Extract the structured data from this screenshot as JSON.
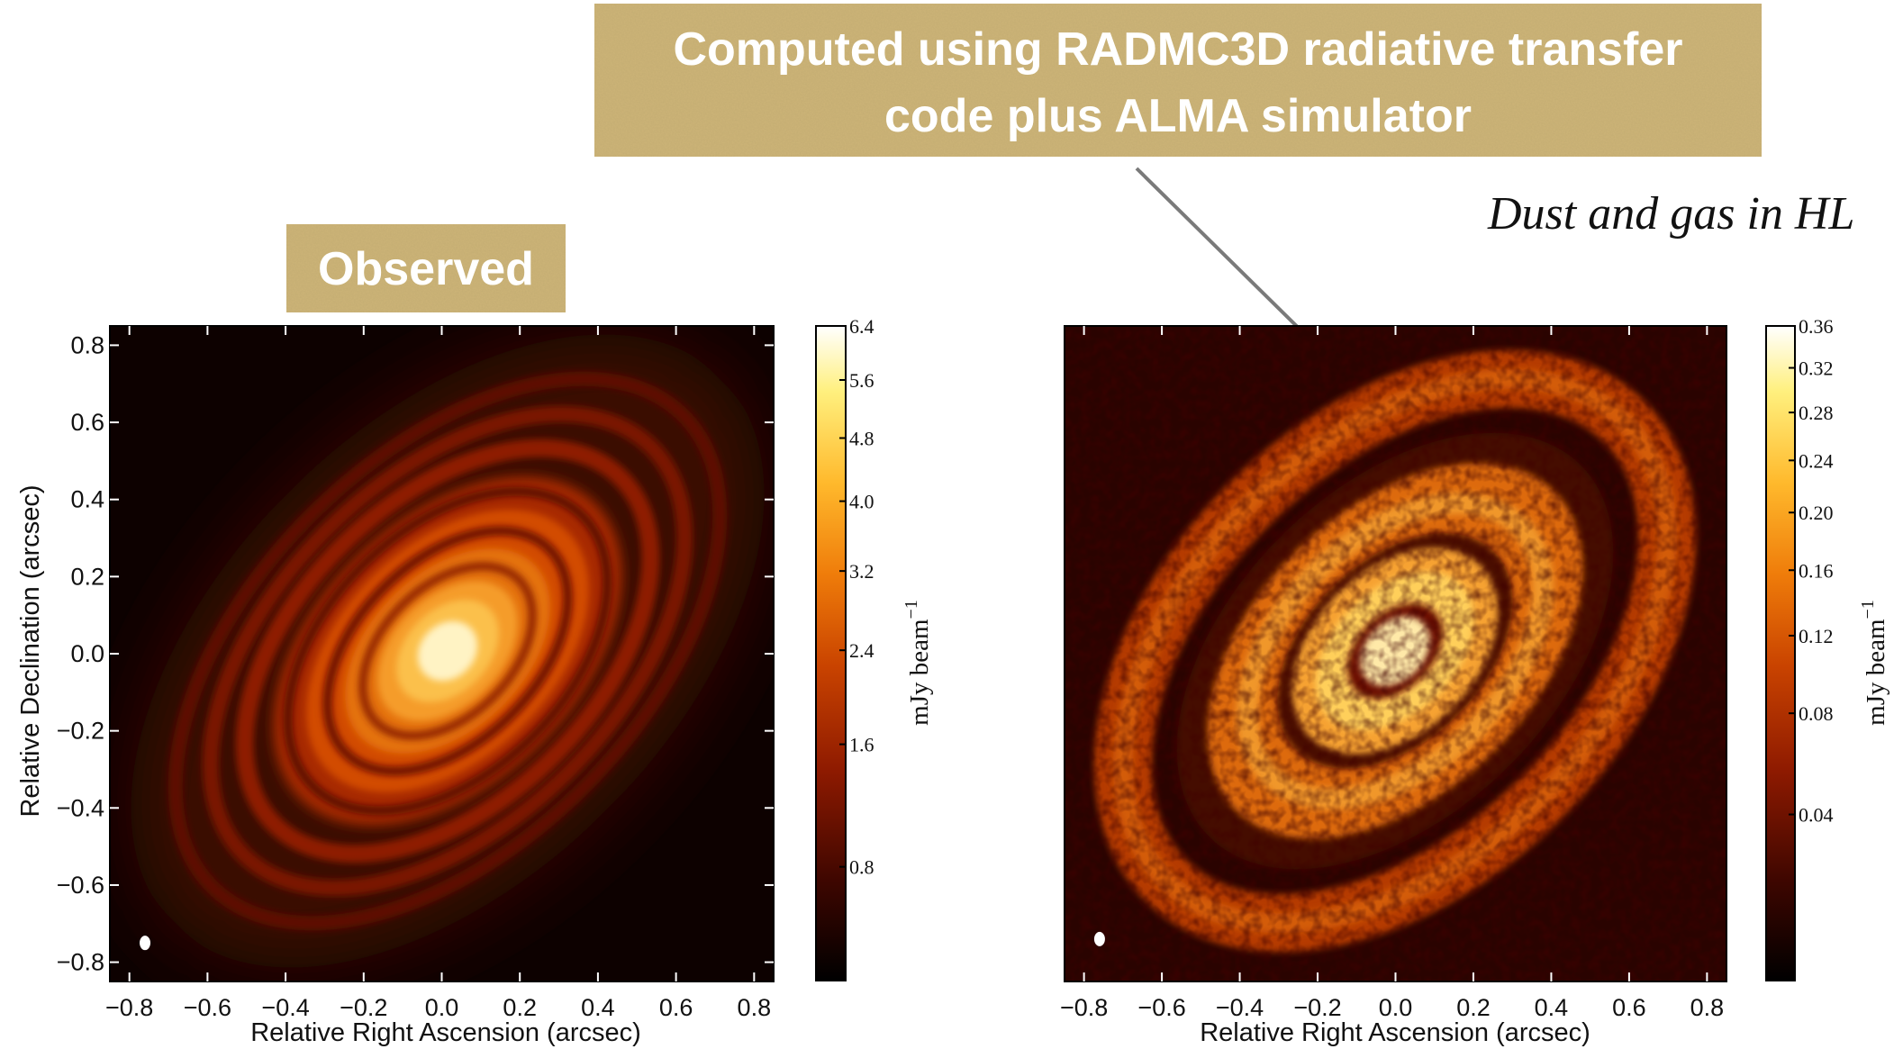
{
  "banner": {
    "line1": "Computed using RADMC3D radiative transfer",
    "line2": "code plus ALMA simulator",
    "background": "#cdb477"
  },
  "title_italic": "Dust and gas in HL",
  "observed_label": "Observed",
  "chart_data": [
    {
      "type": "heatmap",
      "title": "",
      "xlabel": "Relative Right Ascension (arcsec)",
      "ylabel": "Relative Declination (arcsec)",
      "xlim": [
        -0.85,
        0.85
      ],
      "ylim": [
        -0.85,
        0.85
      ],
      "xticks": [
        -0.8,
        -0.6,
        -0.4,
        -0.2,
        0.0,
        0.2,
        0.4,
        0.6,
        0.8
      ],
      "yticks": [
        0.8,
        0.6,
        0.4,
        0.2,
        0.0,
        -0.2,
        -0.4,
        -0.6,
        -0.8
      ],
      "xtick_labels": [
        "−0.8",
        "−0.6",
        "−0.4",
        "−0.2",
        "0.0",
        "0.2",
        "0.4",
        "0.6",
        "0.8"
      ],
      "ytick_labels": [
        "0.8",
        "0.6",
        "0.4",
        "0.2",
        "0.0",
        "−0.2",
        "−0.4",
        "−0.6",
        "−0.8"
      ],
      "colorbar": {
        "label": "mJy beam",
        "exponent": "−1",
        "ticks": [
          6.4,
          5.6,
          4.8,
          4.0,
          3.2,
          2.4,
          1.6,
          0.8
        ],
        "tick_labels": [
          "6.4",
          "5.6",
          "4.8",
          "4.0",
          "3.2",
          "2.4",
          "1.6",
          "0.8"
        ],
        "range": [
          0.3,
          6.4
        ],
        "scale": "sqrt"
      },
      "colormap": [
        "#000000",
        "#3d0600",
        "#8e1a00",
        "#c94300",
        "#ef7c0a",
        "#ffb92c",
        "#fff07e",
        "#ffffff"
      ],
      "beam": {
        "x": -0.76,
        "y": -0.75
      }
    },
    {
      "type": "heatmap",
      "title": "",
      "xlabel": "Relative Right Ascension (arcsec)",
      "ylabel": "",
      "xlim": [
        -0.85,
        0.85
      ],
      "ylim": [
        -0.85,
        0.85
      ],
      "xticks": [
        -0.8,
        -0.6,
        -0.4,
        -0.2,
        0.0,
        0.2,
        0.4,
        0.6,
        0.8
      ],
      "xtick_labels": [
        "−0.8",
        "−0.6",
        "−0.4",
        "−0.2",
        "0.0",
        "0.2",
        "0.4",
        "0.6",
        "0.8"
      ],
      "colorbar": {
        "label": "mJy beam",
        "exponent": "−1",
        "ticks": [
          0.36,
          0.32,
          0.28,
          0.24,
          0.2,
          0.16,
          0.12,
          0.08,
          0.04
        ],
        "tick_labels": [
          "0.36",
          "0.32",
          "0.28",
          "0.24",
          "0.20",
          "0.16",
          "0.12",
          "0.08",
          "0.04"
        ],
        "range": [
          0.004,
          0.36
        ],
        "scale": "sqrt"
      },
      "colormap": [
        "#000000",
        "#3d0600",
        "#8e1a00",
        "#c94300",
        "#ef7c0a",
        "#ffb92c",
        "#fff07e",
        "#ffffff"
      ],
      "beam": {
        "x": -0.76,
        "y": -0.74
      }
    }
  ]
}
